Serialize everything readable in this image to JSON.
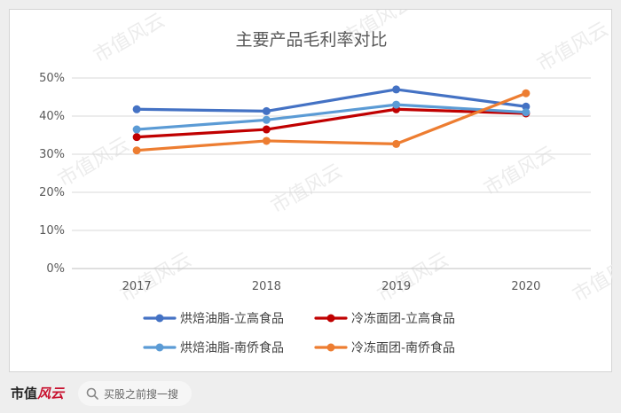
{
  "watermark_text": "市值风云",
  "chart_data": {
    "type": "line",
    "title": "主要产品毛利率对比",
    "categories": [
      "2017",
      "2018",
      "2019",
      "2020"
    ],
    "y_ticks": [
      "0%",
      "10%",
      "20%",
      "30%",
      "40%",
      "50%"
    ],
    "ylim": [
      0,
      50
    ],
    "grid": true,
    "legend_position": "bottom",
    "series": [
      {
        "name": "烘焙油脂-立高食品",
        "color": "#4472c4",
        "values": [
          41.8,
          41.3,
          47.0,
          42.5
        ]
      },
      {
        "name": "冷冻面团-立高食品",
        "color": "#c00000",
        "values": [
          34.5,
          36.5,
          41.8,
          40.7
        ]
      },
      {
        "name": "烘焙油脂-南侨食品",
        "color": "#5b9bd5",
        "values": [
          36.5,
          39.0,
          43.0,
          41.0
        ]
      },
      {
        "name": "冷冻面团-南侨食品",
        "color": "#ed7d31",
        "values": [
          31.0,
          33.5,
          32.7,
          46.0
        ]
      }
    ]
  },
  "footer": {
    "logo_text": "市值",
    "logo_swash": "风云",
    "search_placeholder": "买股之前搜一搜"
  }
}
